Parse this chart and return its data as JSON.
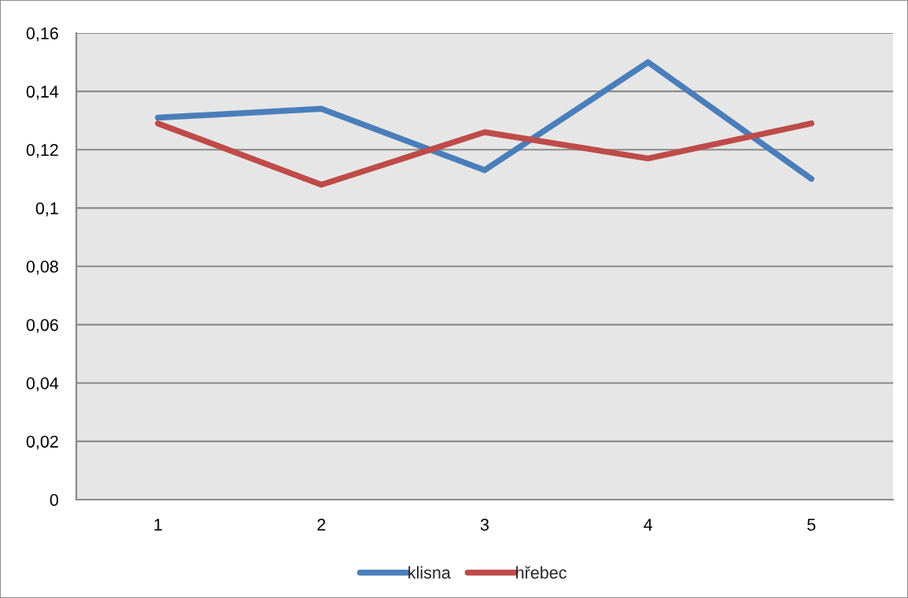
{
  "chart_data": {
    "type": "line",
    "categories": [
      "1",
      "2",
      "3",
      "4",
      "5"
    ],
    "series": [
      {
        "name": "klisna",
        "color": "#4a7ebb",
        "values": [
          0.131,
          0.134,
          0.113,
          0.15,
          0.11
        ]
      },
      {
        "name": "hřebec",
        "color": "#be4b48",
        "values": [
          0.129,
          0.108,
          0.126,
          0.117,
          0.129
        ]
      }
    ],
    "ylim": [
      0,
      0.16
    ],
    "yticks": [
      0,
      {
        "value": 0.02,
        "label": "0,02"
      },
      {
        "value": 0.04,
        "label": "0,04"
      },
      {
        "value": 0.06,
        "label": "0,06"
      },
      {
        "value": 0.08,
        "label": "0,08"
      },
      {
        "value": 0.1,
        "label": "0,1"
      },
      {
        "value": 0.12,
        "label": "0,12"
      },
      {
        "value": 0.14,
        "label": "0,14"
      },
      {
        "value": 0.16,
        "label": "0,16"
      }
    ],
    "grid": "y",
    "legend": "bottom",
    "line_style": "solid"
  }
}
